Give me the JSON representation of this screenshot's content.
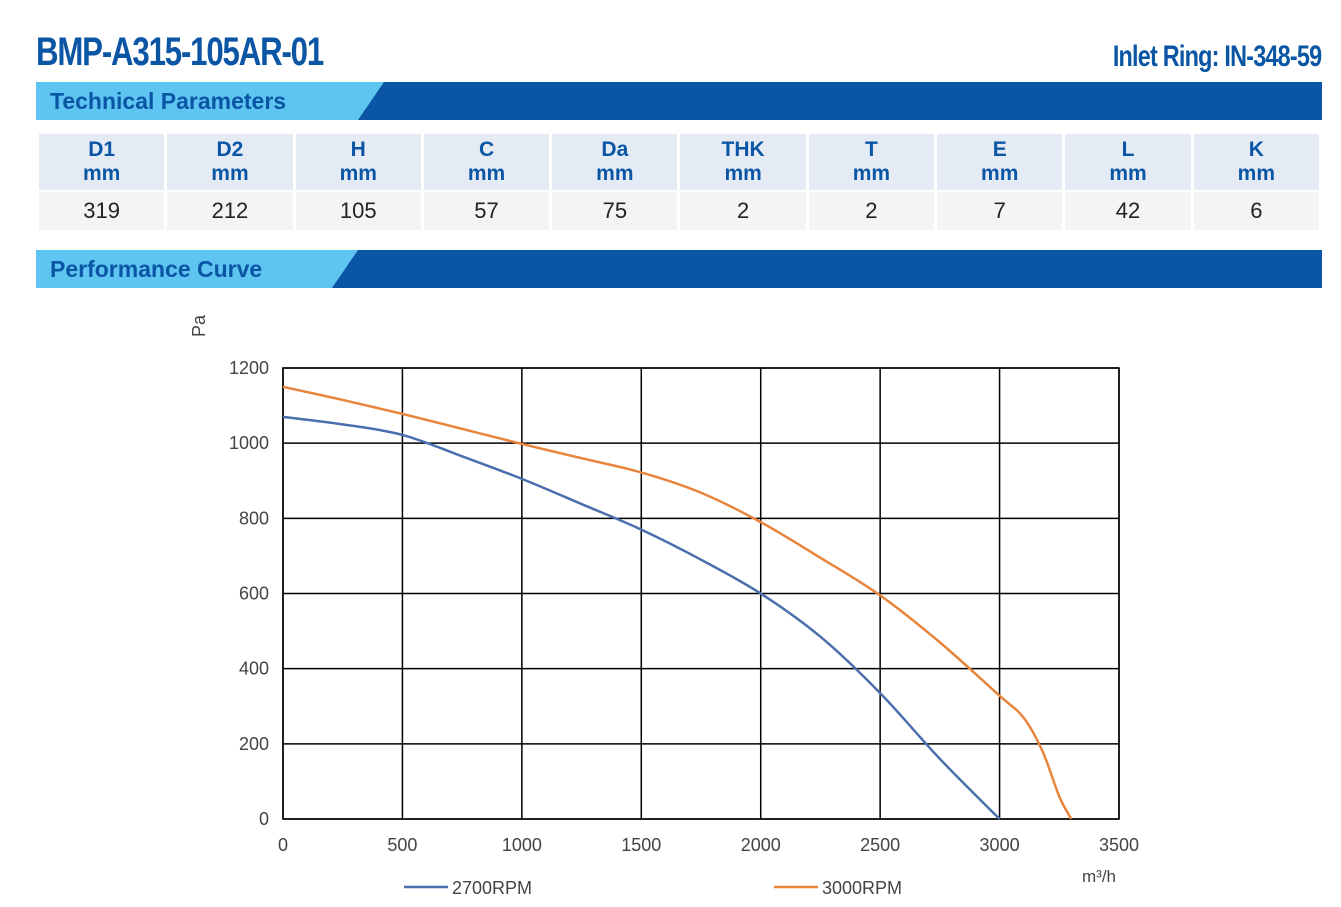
{
  "header": {
    "title": "BMP-A315-105AR-01",
    "inlet_ring": "Inlet Ring: IN-348-59"
  },
  "sections": {
    "technical": "Technical Parameters",
    "performance": "Performance Curve"
  },
  "colors": {
    "brand_blue": "#0b56a4",
    "light_blue": "#5ec4f2",
    "series_2700": "#4a6fad",
    "series_3000": "#e8853d"
  },
  "parameters": {
    "columns": [
      {
        "name": "D1",
        "unit": "mm",
        "value": "319"
      },
      {
        "name": "D2",
        "unit": "mm",
        "value": "212"
      },
      {
        "name": "H",
        "unit": "mm",
        "value": "105"
      },
      {
        "name": "C",
        "unit": "mm",
        "value": "57"
      },
      {
        "name": "Da",
        "unit": "mm",
        "value": "75"
      },
      {
        "name": "THK",
        "unit": "mm",
        "value": "2"
      },
      {
        "name": "T",
        "unit": "mm",
        "value": "2"
      },
      {
        "name": "E",
        "unit": "mm",
        "value": "7"
      },
      {
        "name": "L",
        "unit": "mm",
        "value": "42"
      },
      {
        "name": "K",
        "unit": "mm",
        "value": "6"
      }
    ]
  },
  "chart_data": {
    "type": "line",
    "title": "",
    "xlabel": "m³/h",
    "ylabel": "Pa",
    "xlim": [
      0,
      3500
    ],
    "ylim": [
      0,
      1200
    ],
    "xticks": [
      0,
      500,
      1000,
      1500,
      2000,
      2500,
      3000,
      3500
    ],
    "yticks": [
      0,
      200,
      400,
      600,
      800,
      1000,
      1200
    ],
    "grid": true,
    "legend_position": "bottom",
    "series": [
      {
        "name": "2700RPM",
        "color": "#4a6fad",
        "x": [
          0,
          250,
          500,
          750,
          1000,
          1250,
          1500,
          1750,
          2000,
          2250,
          2500,
          2750,
          3000
        ],
        "y": [
          1070,
          1050,
          1022,
          965,
          905,
          838,
          770,
          690,
          600,
          485,
          335,
          160,
          0
        ]
      },
      {
        "name": "3000RPM",
        "color": "#e8853d",
        "x": [
          0,
          250,
          500,
          750,
          1000,
          1250,
          1500,
          1750,
          2000,
          2250,
          2500,
          2750,
          3000,
          3100,
          3180,
          3250,
          3300
        ],
        "y": [
          1150,
          1115,
          1078,
          1038,
          998,
          960,
          922,
          868,
          790,
          695,
          595,
          470,
          328,
          270,
          180,
          60,
          0
        ]
      }
    ]
  }
}
